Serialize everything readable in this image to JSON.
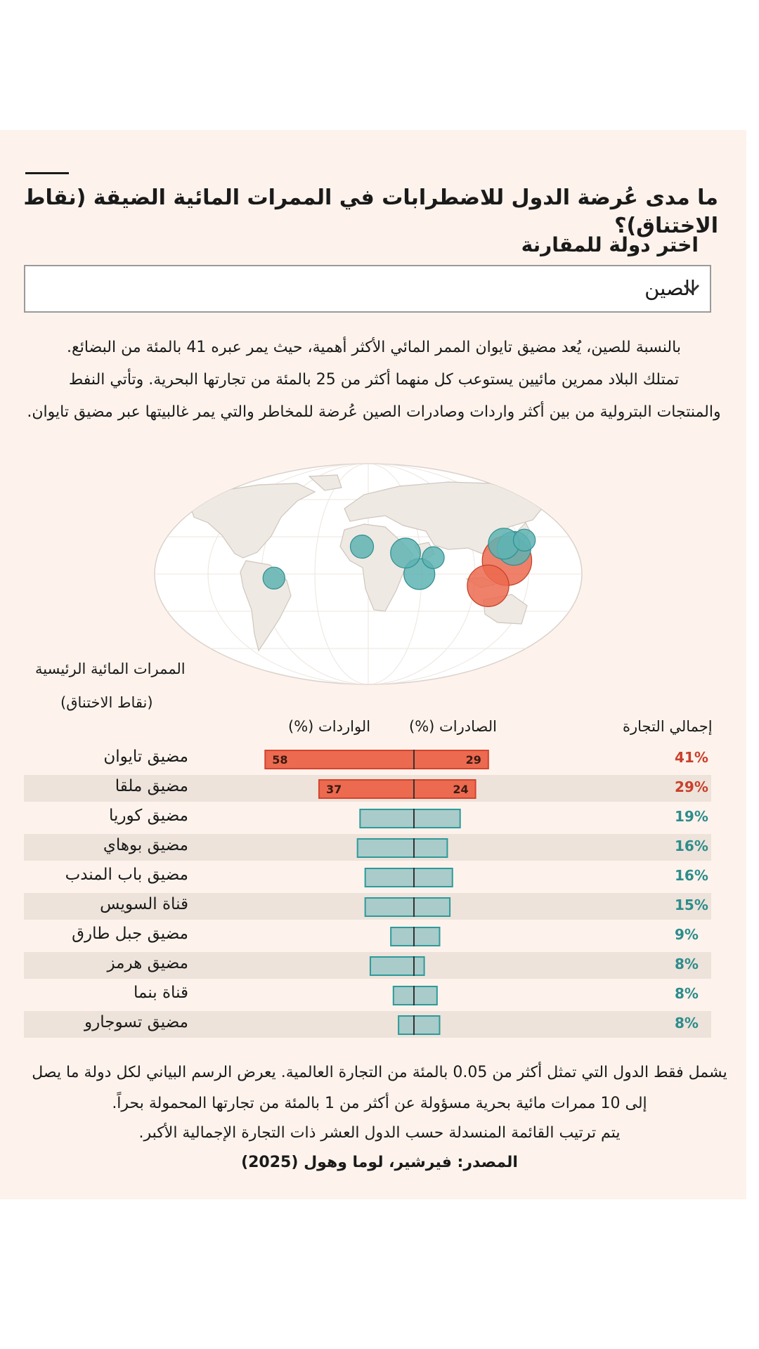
{
  "title": "ما مدى عُرضة الدول للاضطرابات في الممرات المائية الضيقة (نقاط الاختناق)؟",
  "select": {
    "label": "اختر دولة للمقارنة",
    "value": "الصين",
    "icon": "chevron-down-icon"
  },
  "description": [
    "بالنسبة للصين، يُعد مضيق تايوان الممر المائي الأكثر أهمية، حيث يمر عبره 41 بالمئة من البضائع.",
    "تمتلك البلاد ممرين مائيين يستوعب كل منهما أكثر من 25 بالمئة  من تجارتها البحرية. وتأتي النفط",
    "والمنتجات البترولية من بين أكثر واردات وصادرات الصين عُرضة للمخاطر والتي يمر غالبيتها عبر مضيق تايوان."
  ],
  "map": {
    "colors": {
      "high": "#ec6a4f",
      "low": "#5fb3b3",
      "ocean": "#ffffff",
      "land": "#efe9e3"
    },
    "markers": [
      {
        "name": "مضيق تايوان",
        "lon": 119.5,
        "lat": 24.0,
        "share": 41,
        "level": "high"
      },
      {
        "name": "مضيق ملقا",
        "lon": 101.0,
        "lat": 2.5,
        "share": 29,
        "level": "high"
      },
      {
        "name": "مضيق كوريا",
        "lon": 128.5,
        "lat": 34.5,
        "share": 19,
        "level": "low"
      },
      {
        "name": "مضيق بوهاي",
        "lon": 121.0,
        "lat": 38.5,
        "share": 16,
        "level": "low"
      },
      {
        "name": "مضيق باب المندب",
        "lon": 43.3,
        "lat": 12.6,
        "share": 16,
        "level": "low"
      },
      {
        "name": "قناة السويس",
        "lon": 32.5,
        "lat": 30.5,
        "share": 15,
        "level": "low"
      },
      {
        "name": "مضيق جبل طارق",
        "lon": -5.6,
        "lat": 36.0,
        "share": 9,
        "level": "low"
      },
      {
        "name": "مضيق هرمز",
        "lon": 56.3,
        "lat": 26.6,
        "share": 8,
        "level": "low"
      },
      {
        "name": "قناة بنما",
        "lon": -79.7,
        "lat": 9.1,
        "share": 8,
        "level": "low"
      },
      {
        "name": "مضيق تسوجارو",
        "lon": 140.6,
        "lat": 41.5,
        "share": 8,
        "level": "low"
      }
    ]
  },
  "chart_data": {
    "type": "bar",
    "headers": {
      "waterways_line1": "الممرات المائية الرئيسية",
      "waterways_line2": "(نقاط الاختناق)",
      "exports": "الصادرات (%)",
      "imports": "الواردات (%)",
      "total": "إجمالي التجارة"
    },
    "colors": {
      "high_fill": "#ec6a4f",
      "high_stroke": "#d2442e",
      "low_fill": "#a9cbca",
      "low_stroke": "#2e9a9a",
      "high_text": "#c9402c",
      "low_text": "#2e8c8c"
    },
    "x_imports_range": [
      0,
      58
    ],
    "x_exports_range": [
      0,
      29
    ],
    "rows": [
      {
        "name": "مضيق تايوان",
        "imports": 58,
        "exports": 29,
        "total": "41%",
        "level": "high",
        "imports_label": "58",
        "exports_label": "29"
      },
      {
        "name": "مضيق ملقا",
        "imports": 37,
        "exports": 24,
        "total": "29%",
        "level": "high",
        "imports_label": "37",
        "exports_label": "24"
      },
      {
        "name": "مضيق كوريا",
        "imports": 21,
        "exports": 18,
        "total": "19%",
        "level": "low"
      },
      {
        "name": "مضيق بوهاي",
        "imports": 22,
        "exports": 13,
        "total": "16%",
        "level": "low"
      },
      {
        "name": "مضيق باب المندب",
        "imports": 19,
        "exports": 15,
        "total": "16%",
        "level": "low"
      },
      {
        "name": "قناة السويس",
        "imports": 19,
        "exports": 14,
        "total": "15%",
        "level": "low"
      },
      {
        "name": "مضيق جبل طارق",
        "imports": 9,
        "exports": 10,
        "total": "9%",
        "level": "low"
      },
      {
        "name": "مضيق هرمز",
        "imports": 17,
        "exports": 4,
        "total": "8%",
        "level": "low"
      },
      {
        "name": "قناة بنما",
        "imports": 8,
        "exports": 9,
        "total": "8%",
        "level": "low"
      },
      {
        "name": "مضيق تسوجارو",
        "imports": 6,
        "exports": 10,
        "total": "8%",
        "level": "low"
      }
    ]
  },
  "footer": [
    "يشمل فقط الدول التي تمثل أكثر من 0.05 بالمئة من التجارة العالمية. يعرض الرسم البياني لكل دولة ما يصل",
    "إلى 10 ممرات مائية بحرية مسؤولة عن أكثر من 1 بالمئة من تجارتها المحمولة بحراً.",
    "يتم ترتيب القائمة المنسدلة حسب الدول العشر ذات التجارة الإجمالية الأكبر.",
    "المصدر: فيرشير، لوما وهول (2025)"
  ]
}
